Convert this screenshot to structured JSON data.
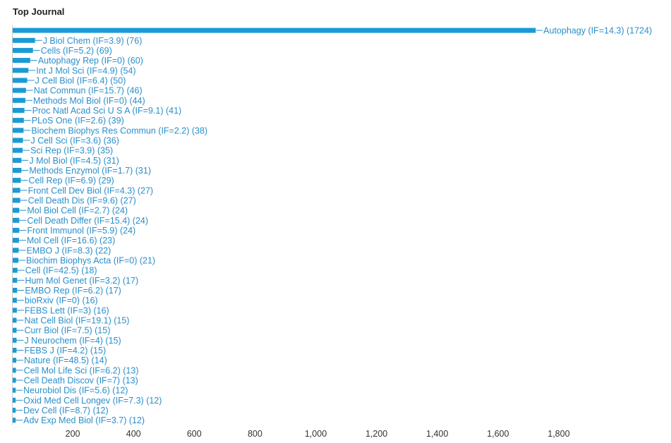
{
  "chart_data": {
    "type": "bar",
    "orientation": "horizontal",
    "title": "Top Journal",
    "xlim": [
      0,
      1800
    ],
    "xticks": [
      200,
      400,
      600,
      800,
      1000,
      1200,
      1400,
      1600,
      1800
    ],
    "xtick_labels": [
      "200",
      "400",
      "600",
      "800",
      "1,000",
      "1,200",
      "1,400",
      "1,600",
      "1,800"
    ],
    "grid": false,
    "bar_color": "#1a9ad6",
    "label_color": "#2a8fca",
    "categories": [
      "Autophagy (IF=14.3) (1724)",
      "J Biol Chem (IF=3.9) (76)",
      "Cells (IF=5.2) (69)",
      "Autophagy Rep (IF=0) (60)",
      "Int J Mol Sci (IF=4.9) (54)",
      "J Cell Biol (IF=6.4) (50)",
      "Nat Commun (IF=15.7) (46)",
      "Methods Mol Biol (IF=0) (44)",
      "Proc Natl Acad Sci U S A (IF=9.1) (41)",
      "PLoS One (IF=2.6) (39)",
      "Biochem Biophys Res Commun (IF=2.2) (38)",
      "J Cell Sci (IF=3.6) (36)",
      "Sci Rep (IF=3.9) (35)",
      "J Mol Biol (IF=4.5) (31)",
      "Methods Enzymol (IF=1.7) (31)",
      "Cell Rep (IF=6.9) (29)",
      "Front Cell Dev Biol (IF=4.3) (27)",
      "Cell Death Dis (IF=9.6) (27)",
      "Mol Biol Cell (IF=2.7) (24)",
      "Cell Death Differ (IF=15.4) (24)",
      "Front Immunol (IF=5.9) (24)",
      "Mol Cell (IF=16.6) (23)",
      "EMBO J (IF=8.3) (22)",
      "Biochim Biophys Acta (IF=0) (21)",
      "Cell (IF=42.5) (18)",
      "Hum Mol Genet (IF=3.2) (17)",
      "EMBO Rep (IF=6.2) (17)",
      "bioRxiv (IF=0) (16)",
      "FEBS Lett (IF=3) (16)",
      "Nat Cell Biol (IF=19.1) (15)",
      "Curr Biol (IF=7.5) (15)",
      "J Neurochem (IF=4) (15)",
      "FEBS J (IF=4.2) (15)",
      "Nature (IF=48.5) (14)",
      "Cell Mol Life Sci (IF=6.2) (13)",
      "Cell Death Discov (IF=7) (13)",
      "Neurobiol Dis (IF=5.6) (12)",
      "Oxid Med Cell Longev (IF=7.3) (12)",
      "Dev Cell (IF=8.7) (12)",
      "Adv Exp Med Biol (IF=3.7) (12)"
    ],
    "values": [
      1724,
      76,
      69,
      60,
      54,
      50,
      46,
      44,
      41,
      39,
      38,
      36,
      35,
      31,
      31,
      29,
      27,
      27,
      24,
      24,
      24,
      23,
      22,
      21,
      18,
      17,
      17,
      16,
      16,
      15,
      15,
      15,
      15,
      14,
      13,
      13,
      12,
      12,
      12,
      12
    ]
  }
}
